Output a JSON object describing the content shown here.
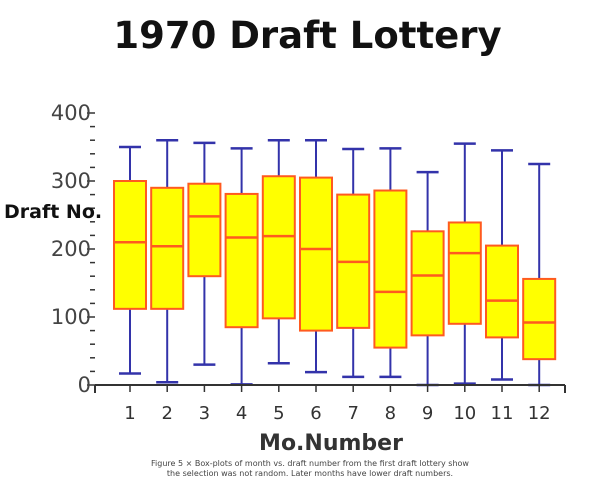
{
  "chart_data": {
    "type": "box",
    "title": "1970 Draft Lottery",
    "xlabel": "Mo.Number",
    "ylabel": "Draft No.",
    "categories": [
      "1",
      "2",
      "3",
      "4",
      "5",
      "6",
      "7",
      "8",
      "9",
      "10",
      "11",
      "12"
    ],
    "yticks": [
      "0",
      "100",
      "200",
      "300",
      "400"
    ],
    "ylim": [
      0,
      400
    ],
    "boxes": [
      {
        "min": 17,
        "q1": 112,
        "median": 210,
        "q3": 300,
        "max": 350
      },
      {
        "min": 4,
        "q1": 112,
        "median": 204,
        "q3": 290,
        "max": 360
      },
      {
        "min": 30,
        "q1": 160,
        "median": 248,
        "q3": 296,
        "max": 356
      },
      {
        "min": 1,
        "q1": 85,
        "median": 217,
        "q3": 281,
        "max": 348
      },
      {
        "min": 32,
        "q1": 98,
        "median": 219,
        "q3": 307,
        "max": 360
      },
      {
        "min": 19,
        "q1": 80,
        "median": 200,
        "q3": 305,
        "max": 360
      },
      {
        "min": 12,
        "q1": 84,
        "median": 181,
        "q3": 280,
        "max": 347
      },
      {
        "min": 12,
        "q1": 55,
        "median": 137,
        "q3": 286,
        "max": 348
      },
      {
        "min": 0,
        "q1": 73,
        "median": 161,
        "q3": 226,
        "max": 313
      },
      {
        "min": 2,
        "q1": 90,
        "median": 194,
        "q3": 239,
        "max": 355
      },
      {
        "min": 8,
        "q1": 70,
        "median": 124,
        "q3": 205,
        "max": 345
      },
      {
        "min": 0,
        "q1": 38,
        "median": 92,
        "q3": 156,
        "max": 325
      }
    ],
    "colors": {
      "box_fill": "#ffff00",
      "box_edge": "#ff5a1f",
      "median": "#ff5a1f",
      "whisker": "#3333aa",
      "axis": "#333333"
    }
  },
  "caption": [
    "Figure 5 × Box-plots of month vs. draft number from the first draft lottery show",
    "the selection was not random. Later months have lower draft numbers."
  ]
}
